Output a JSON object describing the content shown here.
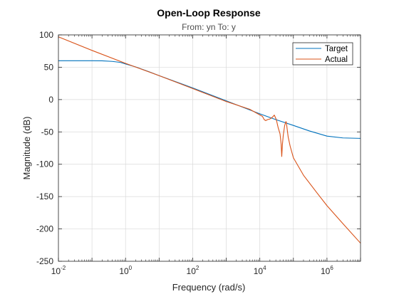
{
  "chart_data": {
    "type": "line",
    "title": "Open-Loop Response",
    "subtitle": "From: yn  To: y",
    "xlabel": "Frequency (rad/s)",
    "ylabel": "Magnitude (dB)",
    "xscale": "log",
    "xlim": [
      0.01,
      10000000
    ],
    "ylim": [
      -250,
      100
    ],
    "grid": true,
    "legend_position": "top-right",
    "x_ticks": [
      {
        "base": "10",
        "exp": "-2",
        "value": 0.01
      },
      {
        "base": "10",
        "exp": "0",
        "value": 1
      },
      {
        "base": "10",
        "exp": "2",
        "value": 100
      },
      {
        "base": "10",
        "exp": "4",
        "value": 10000
      },
      {
        "base": "10",
        "exp": "6",
        "value": 1000000
      }
    ],
    "y_ticks": [
      "100",
      "50",
      "0",
      "-50",
      "-100",
      "-150",
      "-200",
      "-250"
    ],
    "series": [
      {
        "name": "Target",
        "color": "#0072bd",
        "x": [
          0.01,
          0.03,
          0.1,
          0.2,
          0.4,
          0.7,
          1,
          2,
          5,
          10,
          100,
          1000,
          10000,
          30000,
          100000,
          300000,
          1000000,
          3000000,
          10000000
        ],
        "y": [
          60,
          60,
          60,
          59.9,
          59,
          57.5,
          55,
          50.5,
          43,
          37,
          18,
          -2,
          -22,
          -31,
          -40,
          -48.5,
          -56.5,
          -59.3,
          -60
        ]
      },
      {
        "name": "Actual",
        "color": "#d95319",
        "x": [
          0.01,
          0.1,
          1,
          10,
          100,
          1000,
          5000,
          12000,
          13500,
          15000,
          17000,
          20000,
          24000,
          27000,
          31000,
          35000,
          40000,
          43000,
          45000,
          47000,
          50000,
          55000,
          60000,
          62000,
          65000,
          70000,
          80000,
          100000,
          200000,
          500000,
          1000000,
          3000000,
          10000000
        ],
        "y": [
          97,
          76,
          56,
          37,
          17,
          -3,
          -15,
          -26,
          -31,
          -32.5,
          -31,
          -30,
          -27,
          -24,
          -31,
          -43,
          -53,
          -68,
          -88,
          -70,
          -55,
          -40,
          -34,
          -36,
          -45,
          -58,
          -72,
          -90,
          -117,
          -144,
          -164,
          -192,
          -222
        ]
      }
    ]
  }
}
